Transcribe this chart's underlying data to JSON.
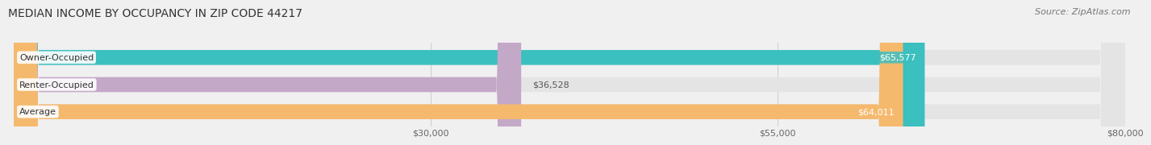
{
  "title": "MEDIAN INCOME BY OCCUPANCY IN ZIP CODE 44217",
  "source": "Source: ZipAtlas.com",
  "categories": [
    "Owner-Occupied",
    "Renter-Occupied",
    "Average"
  ],
  "values": [
    65577,
    36528,
    64011
  ],
  "bar_colors": [
    "#3bbfbf",
    "#c4a8c8",
    "#f5b96e"
  ],
  "value_labels": [
    "$65,577",
    "$36,528",
    "$64,011"
  ],
  "value_inside": [
    true,
    false,
    true
  ],
  "xlim": [
    0,
    80000
  ],
  "xticks": [
    30000,
    55000,
    80000
  ],
  "xtick_labels": [
    "$30,000",
    "$55,000",
    "$80,000"
  ],
  "background_color": "#f0f0f0",
  "bar_bg_color": "#e4e4e4",
  "title_fontsize": 10,
  "source_fontsize": 8,
  "bar_label_fontsize": 8,
  "tick_fontsize": 8,
  "bar_height": 0.55
}
